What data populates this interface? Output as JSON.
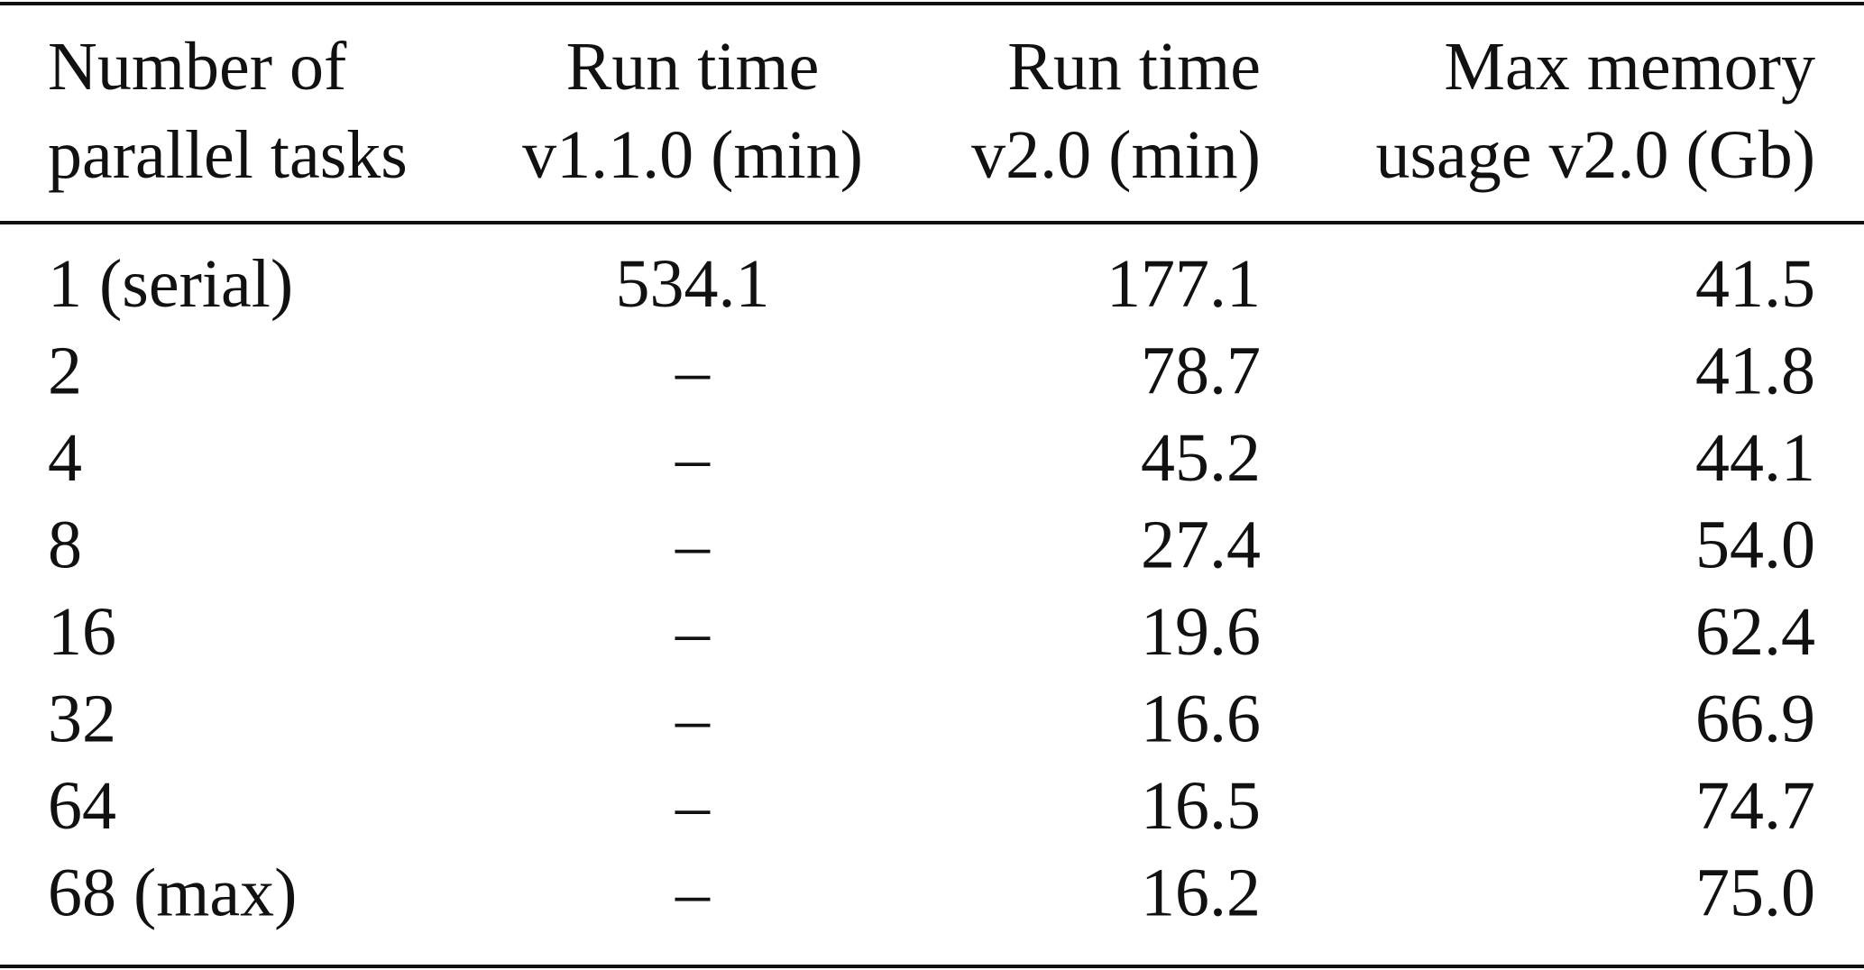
{
  "table": {
    "header": [
      [
        "Number of",
        "parallel tasks"
      ],
      [
        "Run time",
        "v1.1.0 (min)"
      ],
      [
        "Run time",
        "v2.0 (min)"
      ],
      [
        "Max memory",
        "usage v2.0 (Gb)"
      ]
    ],
    "rows": [
      [
        "1 (serial)",
        "534.1",
        "177.1",
        "41.5"
      ],
      [
        "2",
        "–",
        "78.7",
        "41.8"
      ],
      [
        "4",
        "–",
        "45.2",
        "44.1"
      ],
      [
        "8",
        "–",
        "27.4",
        "54.0"
      ],
      [
        "16",
        "–",
        "19.6",
        "62.4"
      ],
      [
        "32",
        "–",
        "16.6",
        "66.9"
      ],
      [
        "64",
        "–",
        "16.5",
        "74.7"
      ],
      [
        "68 (max)",
        "–",
        "16.2",
        "75.0"
      ]
    ]
  }
}
